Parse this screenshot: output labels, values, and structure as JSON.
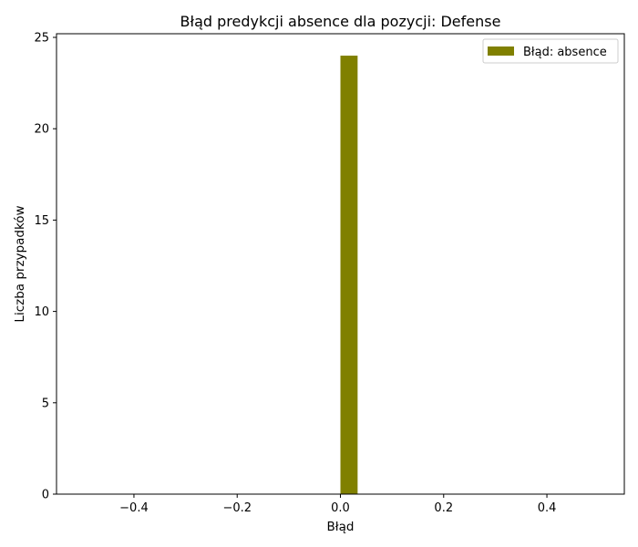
{
  "chart_data": {
    "type": "bar",
    "title": "Błąd predykcji absence dla pozycji: Defense",
    "xlabel": "Błąd",
    "ylabel": "Liczba przypadków",
    "xlim": [
      -0.55,
      0.55
    ],
    "ylim": [
      0,
      25.2
    ],
    "x_ticks": [
      -0.4,
      -0.2,
      0.0,
      0.2,
      0.4
    ],
    "x_tick_labels": [
      "−0.4",
      "−0.2",
      "0.0",
      "0.2",
      "0.4"
    ],
    "y_ticks": [
      0,
      5,
      10,
      15,
      20,
      25
    ],
    "y_tick_labels": [
      "0",
      "5",
      "10",
      "15",
      "20",
      "25"
    ],
    "series": [
      {
        "name": "Błąd: absence",
        "color": "#808000",
        "bins": [
          {
            "x0": 0.0,
            "x1": 0.0333,
            "count": 24
          }
        ]
      }
    ],
    "legend_position": "top-right",
    "grid": false
  }
}
